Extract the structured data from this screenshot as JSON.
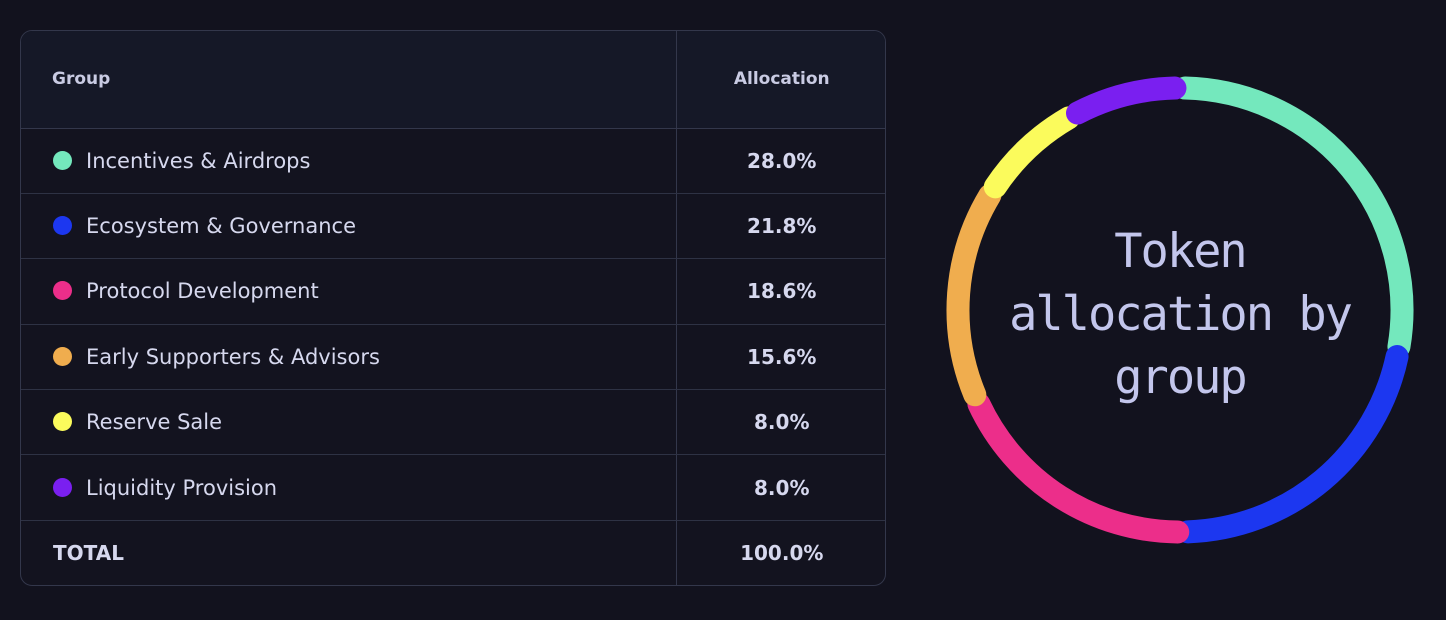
{
  "table": {
    "headers": {
      "group": "Group",
      "allocation": "Allocation"
    },
    "rows": [
      {
        "name": "Incentives & Airdrops",
        "value": "28.0%",
        "color": "#74e8bd"
      },
      {
        "name": "Ecosystem & Governance",
        "value": "21.8%",
        "color": "#1c37f0"
      },
      {
        "name": "Protocol Development",
        "value": "18.6%",
        "color": "#ec2e8a"
      },
      {
        "name": "Early Supporters & Advisors",
        "value": "15.6%",
        "color": "#f0ad4e"
      },
      {
        "name": "Reserve Sale",
        "value": "8.0%",
        "color": "#fbfb5c"
      },
      {
        "name": "Liquidity Provision",
        "value": "8.0%",
        "color": "#7a1ff0"
      }
    ],
    "total": {
      "label": "TOTAL",
      "value": "100.0%"
    }
  },
  "chart_data": {
    "type": "pie",
    "title": "Token allocation by group",
    "categories": [
      "Incentives & Airdrops",
      "Ecosystem & Governance",
      "Protocol Development",
      "Early Supporters & Advisors",
      "Reserve Sale",
      "Liquidity Provision"
    ],
    "values": [
      28.0,
      21.8,
      18.6,
      15.6,
      8.0,
      8.0
    ],
    "colors": [
      "#74e8bd",
      "#1c37f0",
      "#ec2e8a",
      "#f0ad4e",
      "#fbfb5c",
      "#7a1ff0"
    ]
  }
}
